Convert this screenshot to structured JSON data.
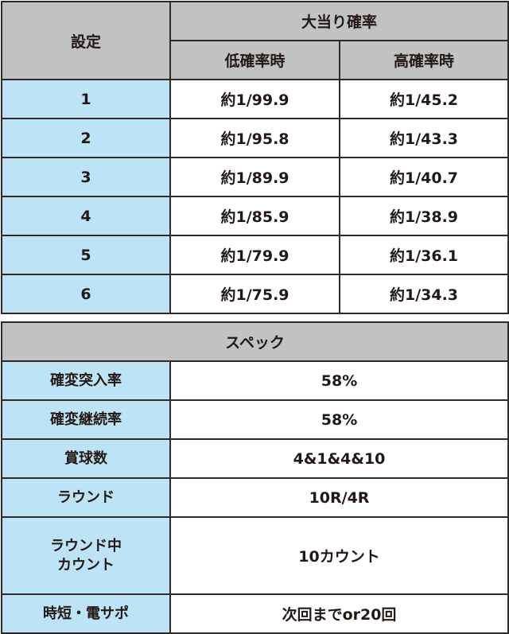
{
  "odds_table": {
    "setting_header": "設定",
    "jackpot_header": "大当り確率",
    "low_header": "低確率時",
    "high_header": "高確率時",
    "rows": [
      {
        "setting": "1",
        "low": "約1/99.9",
        "high": "約1/45.2"
      },
      {
        "setting": "2",
        "low": "約1/95.8",
        "high": "約1/43.3"
      },
      {
        "setting": "3",
        "low": "約1/89.9",
        "high": "約1/40.7"
      },
      {
        "setting": "4",
        "low": "約1/85.9",
        "high": "約1/38.9"
      },
      {
        "setting": "5",
        "low": "約1/79.9",
        "high": "約1/36.1"
      },
      {
        "setting": "6",
        "low": "約1/75.9",
        "high": "約1/34.3"
      }
    ]
  },
  "spec_table": {
    "header": "スペック",
    "rows": [
      {
        "label": "確変突入率",
        "value": "58%"
      },
      {
        "label": "確変継続率",
        "value": "58%"
      },
      {
        "label": "賞球数",
        "value": "4&1&4&10"
      },
      {
        "label": "ラウンド",
        "value": "10R/4R"
      },
      {
        "label_line1": "ラウンド中",
        "label_line2": "カウント",
        "value": "10カウント"
      },
      {
        "label": "時短・電サポ",
        "value": "次回までor20回"
      }
    ]
  },
  "colors": {
    "header_gray": "#c1c2c2",
    "label_blue": "#bde3f7",
    "border": "#2f2a29"
  }
}
